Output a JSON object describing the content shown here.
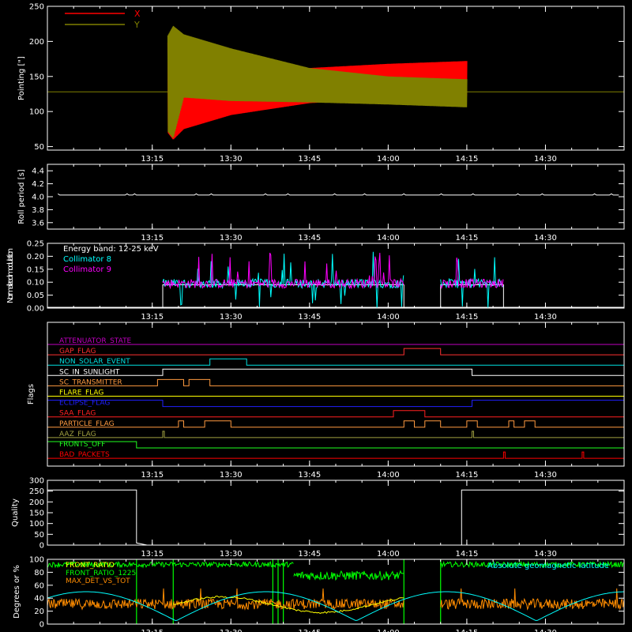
{
  "colors": {
    "background": "#000000",
    "axes": "#ffffff",
    "x_series": "#ff0000",
    "y_series": "#808000",
    "collimator8": "#00ffff",
    "collimator9": "#ff00ff",
    "front_ratio": "#ffff00",
    "front_ratio_225": "#00ff00",
    "max_det_vs_tot": "#ff8c00",
    "geomag": "#00ffff"
  },
  "time_axis": {
    "range": [
      "12:55",
      "14:45"
    ],
    "ticks": [
      "13:15",
      "13:30",
      "13:45",
      "14:00",
      "14:15",
      "14:30"
    ]
  },
  "chart_data": [
    {
      "type": "line",
      "ylabel": "Pointing [\"]",
      "ylim": [
        45,
        250
      ],
      "yticks": [
        "50",
        "100",
        "150",
        "200",
        "250"
      ],
      "legend": [
        "X",
        "Y"
      ],
      "legend_placement": "top-left",
      "series": [
        {
          "name": "X",
          "color": "#ff0000",
          "envelope": [
            {
              "t": "13:12",
              "lo": 128,
              "hi": 128
            },
            {
              "t": "13:19",
              "lo": 60,
              "hi": 210
            },
            {
              "t": "13:21",
              "lo": 75,
              "hi": 145
            },
            {
              "t": "13:30",
              "lo": 95,
              "hi": 155
            },
            {
              "t": "13:45",
              "lo": 112,
              "hi": 162
            },
            {
              "t": "14:00",
              "lo": 118,
              "hi": 168
            },
            {
              "t": "14:15",
              "lo": 122,
              "hi": 172
            }
          ]
        },
        {
          "name": "Y",
          "color": "#808000",
          "envelope": [
            {
              "t": "13:12",
              "lo": 128,
              "hi": 128
            },
            {
              "t": "13:19",
              "lo": 62,
              "hi": 222
            },
            {
              "t": "13:21",
              "lo": 120,
              "hi": 210
            },
            {
              "t": "13:30",
              "lo": 115,
              "hi": 190
            },
            {
              "t": "13:45",
              "lo": 113,
              "hi": 162
            },
            {
              "t": "14:00",
              "lo": 110,
              "hi": 150
            },
            {
              "t": "14:15",
              "lo": 106,
              "hi": 146
            }
          ]
        }
      ],
      "reference_line": 128
    },
    {
      "type": "line",
      "ylabel": "Roll period [s]",
      "ylim": [
        3.5,
        4.5
      ],
      "yticks": [
        "3.6",
        "3.8",
        "4.0",
        "4.2",
        "4.4"
      ],
      "series": [
        {
          "name": "",
          "values": [
            4.02,
            4.03,
            4.02,
            4.03,
            4.02,
            4.03,
            4.02,
            4.02
          ]
        }
      ]
    },
    {
      "type": "line",
      "ylabel": "Normalized modulation",
      "ylim": [
        0,
        0.25
      ],
      "yticks": [
        "0.00",
        "0.05",
        "0.10",
        "0.15",
        "0.20",
        "0.25"
      ],
      "annotation": "Energy band: 12-25 keV",
      "legend": [
        "Collimator 8",
        "Collimator 9"
      ],
      "active_intervals": [
        [
          "13:17",
          "14:03"
        ],
        [
          "14:10",
          "14:22"
        ]
      ],
      "baseline": 0.09
    },
    {
      "type": "table",
      "ylabel": "Flags",
      "flags": [
        {
          "name": "ATTENUATOR_STATE",
          "color": "#c000c0",
          "on": []
        },
        {
          "name": "GAP_FLAG",
          "color": "#ff3030",
          "on": [
            [
              "14:03",
              "14:10"
            ]
          ]
        },
        {
          "name": "NON_SOLAR_EVENT",
          "color": "#00e0e0",
          "on": [
            [
              "13:26",
              "13:33"
            ]
          ]
        },
        {
          "name": "SC_IN_SUNLIGHT",
          "color": "#ffffff",
          "on": [
            [
              "13:17",
              "14:16"
            ]
          ]
        },
        {
          "name": "SC_TRANSMITTER",
          "color": "#ff9a40",
          "on": [
            [
              "13:16",
              "13:21"
            ],
            [
              "13:22",
              "13:26"
            ]
          ]
        },
        {
          "name": "FLARE_FLAG",
          "color": "#ffff00",
          "on": []
        },
        {
          "name": "ECLIPSE_FLAG",
          "color": "#2020ff",
          "on": [
            [
              "12:55",
              "13:17"
            ],
            [
              "14:16",
              "14:45"
            ]
          ]
        },
        {
          "name": "SAA_FLAG",
          "color": "#ff2020",
          "on": [
            [
              "14:01",
              "14:07"
            ]
          ]
        },
        {
          "name": "PARTICLE_FLAG",
          "color": "#ff9a40",
          "on": [
            [
              "13:20",
              "13:21"
            ],
            [
              "13:25",
              "13:30"
            ],
            [
              "14:03",
              "14:05"
            ],
            [
              "14:07",
              "14:10"
            ],
            [
              "14:15",
              "14:17"
            ],
            [
              "14:23",
              "14:24"
            ],
            [
              "14:26",
              "14:28"
            ]
          ]
        },
        {
          "name": "AAZ_FLAG",
          "color": "#a0a040",
          "on": [
            [
              "13:17",
              "13:17"
            ],
            [
              "14:16",
              "14:16"
            ]
          ]
        },
        {
          "name": "FRONTS_OFF",
          "color": "#20ff20",
          "on": [
            [
              "12:55",
              "13:12"
            ]
          ]
        },
        {
          "name": "BAD_PACKETS",
          "color": "#ff0000",
          "on": [
            [
              "14:22",
              "14:22"
            ],
            [
              "14:37",
              "14:37"
            ]
          ]
        }
      ]
    },
    {
      "type": "line",
      "ylabel": "Quality",
      "ylim": [
        0,
        300
      ],
      "yticks": [
        "0",
        "50",
        "100",
        "150",
        "200",
        "250",
        "300"
      ],
      "series": [
        {
          "name": "",
          "values": [
            {
              "t": "12:55",
              "v": 255
            },
            {
              "t": "13:12",
              "v": 255
            },
            {
              "t": "13:12",
              "v": 10
            },
            {
              "t": "13:13",
              "v": 5
            },
            {
              "t": "13:14",
              "v": 0
            },
            {
              "t": "14:14",
              "v": 0
            },
            {
              "t": "14:14",
              "v": 255
            },
            {
              "t": "14:45",
              "v": 255
            }
          ]
        }
      ]
    },
    {
      "type": "line",
      "ylabel": "Degrees or %",
      "ylim": [
        0,
        100
      ],
      "yticks": [
        "0",
        "20",
        "40",
        "60",
        "80",
        "100"
      ],
      "legend": [
        "FRONT_RATIO",
        "FRONT_RATIO_1225",
        "MAX_DET_VS_TOT"
      ],
      "legend_right": "Absolute geomagnetic latitude",
      "series": [
        {
          "name": "FRONT_RATIO",
          "typical": 33
        },
        {
          "name": "FRONT_RATIO_1225",
          "typical": 92
        },
        {
          "name": "MAX_DET_VS_TOT",
          "typical": 30
        },
        {
          "name": "Absolute geomagnetic latitude",
          "min": 5,
          "max": 50
        }
      ]
    }
  ]
}
